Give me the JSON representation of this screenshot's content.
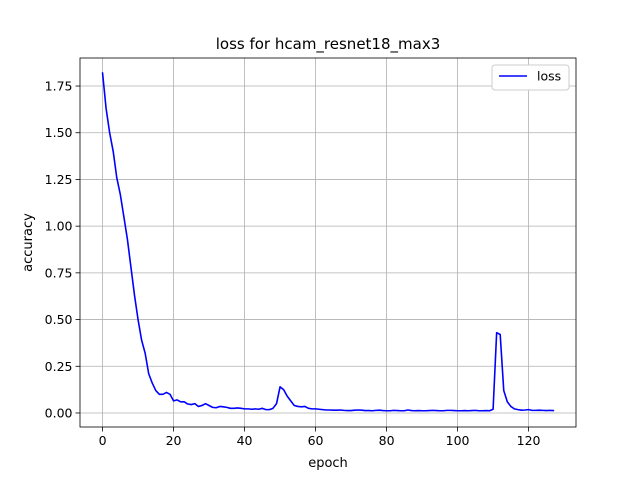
{
  "chart_data": {
    "type": "line",
    "title": "loss for hcam_resnet18_max3",
    "xlabel": "epoch",
    "ylabel": "accuracy",
    "xlim": [
      -6.35,
      133.35
    ],
    "ylim": [
      -0.075,
      1.9
    ],
    "xticks": [
      0,
      20,
      40,
      60,
      80,
      100,
      120
    ],
    "xtick_labels": [
      "0",
      "20",
      "40",
      "60",
      "80",
      "100",
      "120"
    ],
    "yticks": [
      0.0,
      0.25,
      0.5,
      0.75,
      1.0,
      1.25,
      1.5,
      1.75
    ],
    "ytick_labels": [
      "0.00",
      "0.25",
      "0.50",
      "0.75",
      "1.00",
      "1.25",
      "1.50",
      "1.75"
    ],
    "grid": true,
    "legend": "top-right",
    "series": [
      {
        "name": "loss",
        "color": "#0000ff",
        "x": [
          0,
          1,
          2,
          3,
          4,
          5,
          6,
          7,
          8,
          9,
          10,
          11,
          12,
          13,
          14,
          15,
          16,
          17,
          18,
          19,
          20,
          21,
          22,
          23,
          24,
          25,
          26,
          27,
          28,
          29,
          30,
          31,
          32,
          33,
          34,
          35,
          36,
          37,
          38,
          39,
          40,
          41,
          42,
          43,
          44,
          45,
          46,
          47,
          48,
          49,
          50,
          51,
          52,
          53,
          54,
          55,
          56,
          57,
          58,
          59,
          60,
          61,
          62,
          63,
          64,
          65,
          66,
          67,
          68,
          69,
          70,
          71,
          72,
          73,
          74,
          75,
          76,
          77,
          78,
          79,
          80,
          81,
          82,
          83,
          84,
          85,
          86,
          87,
          88,
          89,
          90,
          91,
          92,
          93,
          94,
          95,
          96,
          97,
          98,
          99,
          100,
          101,
          102,
          103,
          104,
          105,
          106,
          107,
          108,
          109,
          110,
          111,
          112,
          113,
          114,
          115,
          116,
          117,
          118,
          119,
          120,
          121,
          122,
          123,
          124,
          125,
          126,
          127
        ],
        "values": [
          1.82,
          1.63,
          1.5,
          1.4,
          1.26,
          1.17,
          1.05,
          0.93,
          0.78,
          0.63,
          0.5,
          0.39,
          0.32,
          0.21,
          0.16,
          0.12,
          0.1,
          0.1,
          0.11,
          0.1,
          0.065,
          0.07,
          0.06,
          0.06,
          0.048,
          0.045,
          0.05,
          0.035,
          0.04,
          0.05,
          0.04,
          0.03,
          0.028,
          0.035,
          0.033,
          0.03,
          0.025,
          0.025,
          0.027,
          0.025,
          0.022,
          0.022,
          0.02,
          0.022,
          0.02,
          0.025,
          0.018,
          0.018,
          0.025,
          0.05,
          0.14,
          0.125,
          0.09,
          0.065,
          0.04,
          0.035,
          0.033,
          0.035,
          0.025,
          0.022,
          0.022,
          0.02,
          0.018,
          0.016,
          0.016,
          0.015,
          0.015,
          0.016,
          0.014,
          0.013,
          0.013,
          0.015,
          0.016,
          0.015,
          0.013,
          0.013,
          0.012,
          0.014,
          0.015,
          0.013,
          0.012,
          0.012,
          0.014,
          0.013,
          0.012,
          0.012,
          0.016,
          0.013,
          0.012,
          0.013,
          0.012,
          0.012,
          0.013,
          0.014,
          0.013,
          0.012,
          0.012,
          0.014,
          0.014,
          0.013,
          0.012,
          0.012,
          0.013,
          0.012,
          0.013,
          0.014,
          0.012,
          0.012,
          0.013,
          0.012,
          0.02,
          0.43,
          0.42,
          0.12,
          0.06,
          0.035,
          0.022,
          0.018,
          0.015,
          0.016,
          0.018,
          0.014,
          0.014,
          0.015,
          0.014,
          0.013,
          0.014,
          0.013
        ]
      }
    ]
  }
}
